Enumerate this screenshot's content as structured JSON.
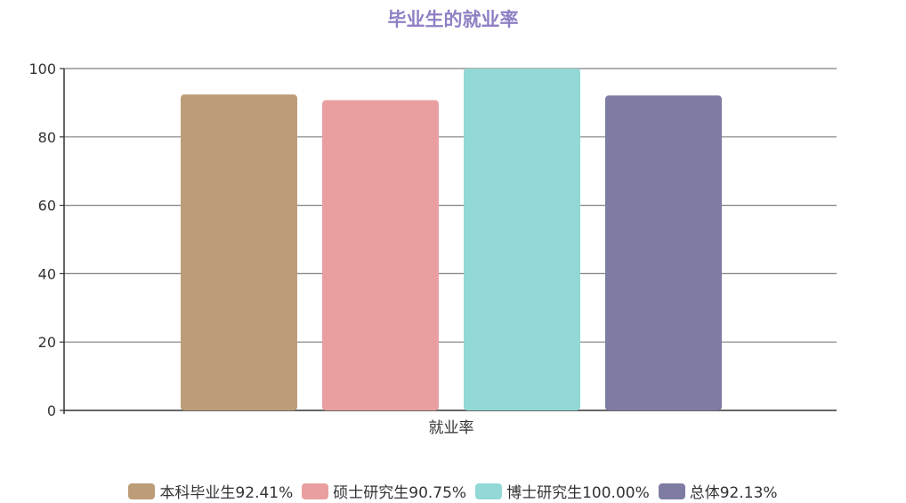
{
  "chart_data": {
    "type": "bar",
    "title": "毕业生的就业率",
    "title_color": "#8f7fc3",
    "categories": [
      "就业率"
    ],
    "series": [
      {
        "name": "本科毕业生92.41%",
        "values": [
          92.41
        ],
        "color": "#bd9d78"
      },
      {
        "name": "硕士研究生90.75%",
        "values": [
          90.75
        ],
        "color": "#e99f9f"
      },
      {
        "name": "博士研究生100.00%",
        "values": [
          100.0
        ],
        "color": "#91d8d6"
      },
      {
        "name": "总体92.13%",
        "values": [
          92.13
        ],
        "color": "#7f7ca4"
      }
    ],
    "ylim": [
      0,
      100
    ],
    "yticks": [
      "0",
      "20",
      "40",
      "60",
      "80",
      "100"
    ],
    "xlabel": "",
    "ylabel": "",
    "grid": true,
    "legend_position": "bottom"
  }
}
